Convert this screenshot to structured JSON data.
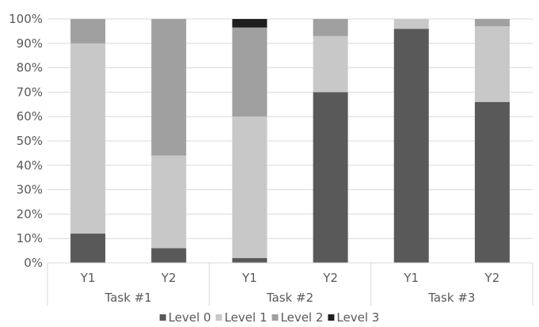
{
  "chart_data": {
    "type": "bar",
    "stacked": true,
    "normalized": true,
    "ylim": [
      0,
      100
    ],
    "yticks": [
      "0%",
      "10%",
      "20%",
      "30%",
      "40%",
      "50%",
      "60%",
      "70%",
      "80%",
      "90%",
      "100%"
    ],
    "categories": [
      "Y1",
      "Y2",
      "Y1",
      "Y2",
      "Y1",
      "Y2"
    ],
    "groups": [
      {
        "label": "Task #1",
        "span": 2
      },
      {
        "label": "Task #2",
        "span": 2
      },
      {
        "label": "Task #3",
        "span": 2
      }
    ],
    "series": [
      {
        "name": "Level 0",
        "color": "#595959",
        "values": [
          12,
          6,
          2,
          70,
          96,
          66
        ]
      },
      {
        "name": "Level 1",
        "color": "#c8c8c8",
        "values": [
          78,
          38,
          58,
          23,
          4,
          31
        ]
      },
      {
        "name": "Level 2",
        "color": "#a0a0a0",
        "values": [
          10,
          56,
          36.5,
          7,
          0,
          3
        ]
      },
      {
        "name": "Level 3",
        "color": "#1e1e1e",
        "values": [
          0,
          0,
          3.5,
          0,
          0,
          0
        ]
      }
    ],
    "legend_position": "bottom",
    "grid": true
  }
}
